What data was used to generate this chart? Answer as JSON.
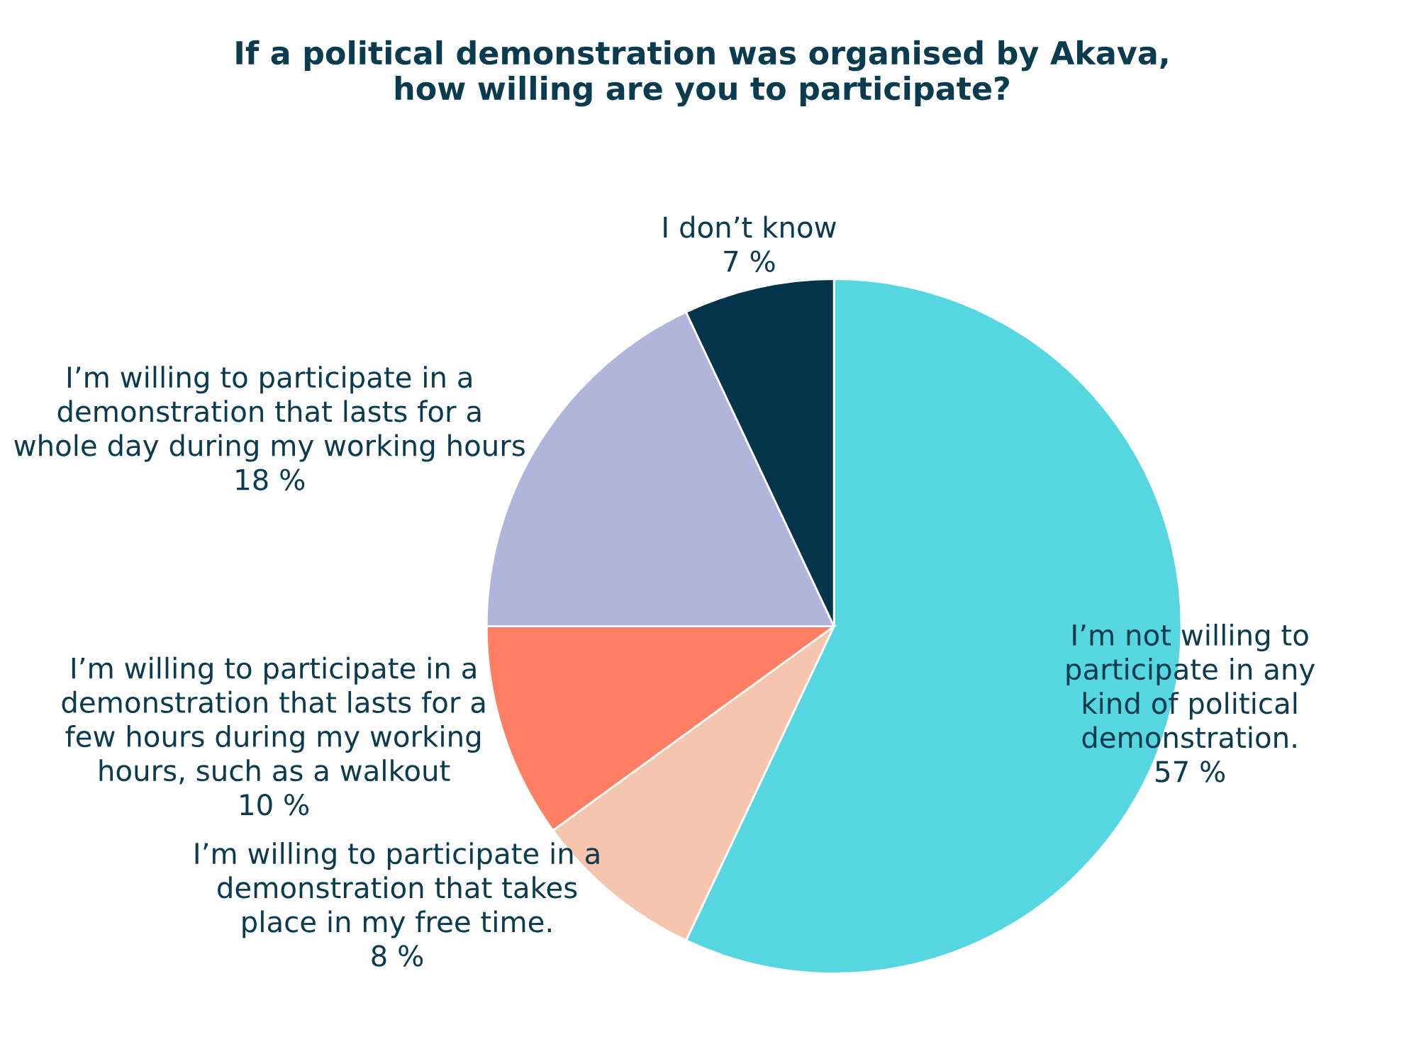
{
  "chart_data": {
    "type": "pie",
    "title": "If a political demonstration was organised by Akava,\nhow willing are you to participate?",
    "categories": [
      "I’m not willing to\nparticipate in any\nkind of political\ndemonstration.",
      "I’m willing to participate in a\ndemonstration that takes\nplace in my free time.",
      "I’m willing to participate in a\ndemonstration that lasts for a\nfew hours during my working\nhours, such as a walkout",
      "I’m willing to participate in a\ndemonstration that lasts for a\nwhole day during my working hours",
      "I don’t know"
    ],
    "values": [
      57,
      8,
      10,
      18,
      7
    ],
    "value_labels": [
      "57 %",
      "8 %",
      "10 %",
      "18 %",
      "7 %"
    ],
    "colors": [
      "#55d6e0",
      "#f5c6ad",
      "#fe7f63",
      "#b0b5dc",
      "#03344a"
    ]
  }
}
